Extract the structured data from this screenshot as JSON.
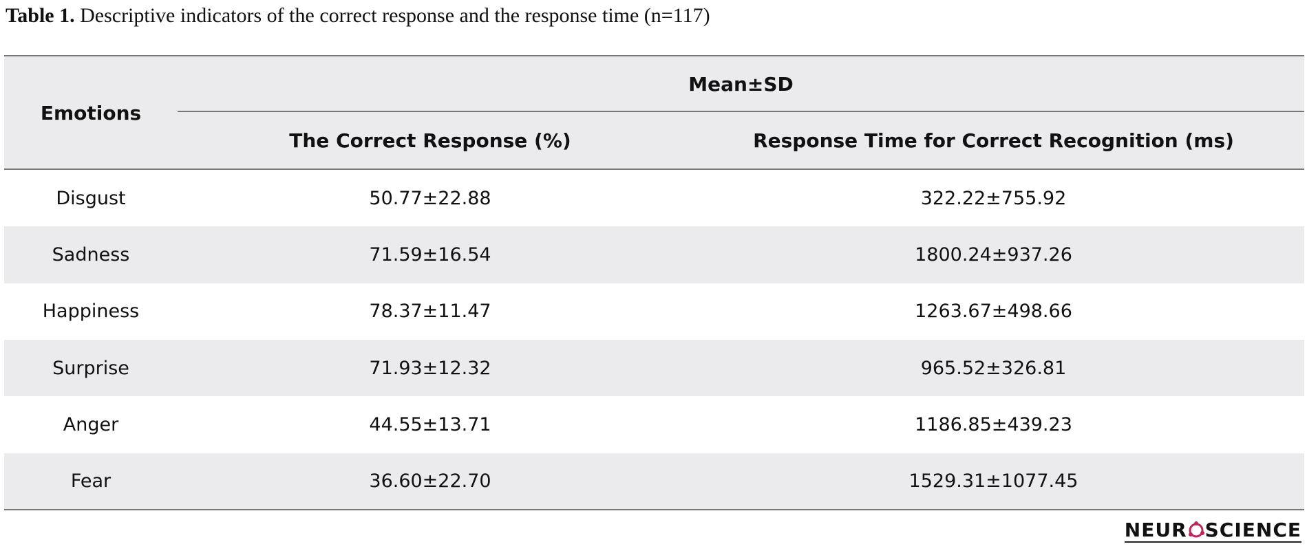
{
  "caption": {
    "label": "Table 1.",
    "text": "Descriptive indicators of the correct response and the response time (n=117)"
  },
  "table": {
    "header": {
      "row_label": "Emotions",
      "group": "Mean±SD",
      "columns": [
        "The Correct Response (%)",
        "Response Time for Correct Recognition (ms)"
      ]
    },
    "rows": [
      [
        "Disgust",
        "50.77±22.88",
        "322.22±755.92"
      ],
      [
        "Sadness",
        "71.59±16.54",
        "1800.24±937.26"
      ],
      [
        "Happiness",
        "78.37±11.47",
        "1263.67±498.66"
      ],
      [
        "Surprise",
        "71.93±12.32",
        "965.52±326.81"
      ],
      [
        "Anger",
        "44.55±13.71",
        "1186.85±439.23"
      ],
      [
        "Fear",
        "36.60±22.70",
        "1529.31±1077.45"
      ]
    ]
  },
  "logo": {
    "left": "NEUR",
    "right": "SCIENCE"
  }
}
